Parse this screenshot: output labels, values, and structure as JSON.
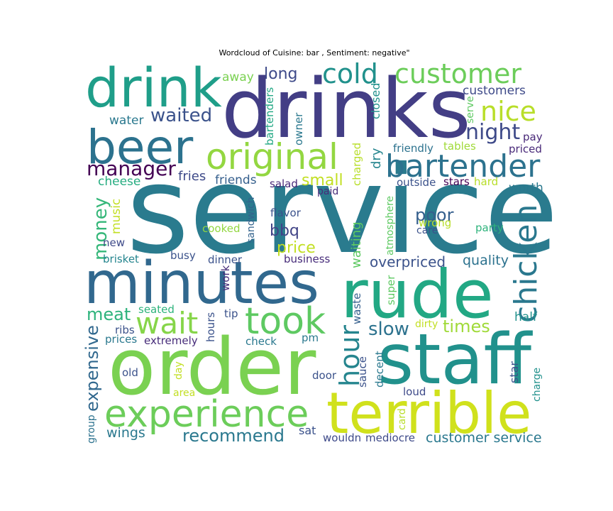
{
  "title": "Wordcloud of Cuisine: bar , Sentiment: negative\"",
  "chart_data": {
    "type": "wordcloud",
    "title": "Wordcloud of Cuisine: bar , Sentiment: negative\"",
    "colormap": "viridis",
    "words": [
      {
        "text": "service",
        "color": "#2a7b8e"
      },
      {
        "text": "drinks",
        "color": "#433e85"
      },
      {
        "text": "order",
        "color": "#7ad151"
      },
      {
        "text": "staff",
        "color": "#21918c"
      },
      {
        "text": "minutes",
        "color": "#31688e"
      },
      {
        "text": "rude",
        "color": "#22a884"
      },
      {
        "text": "drink",
        "color": "#1f9e89"
      },
      {
        "text": "terrible",
        "color": "#d0e11c"
      },
      {
        "text": "beer",
        "color": "#2c728e"
      },
      {
        "text": "experience",
        "color": "#6ccd5a"
      },
      {
        "text": "original",
        "color": "#93d741"
      },
      {
        "text": "took",
        "color": "#5ec962"
      },
      {
        "text": "customer",
        "color": "#6ccd5a"
      },
      {
        "text": "bartender",
        "color": "#2c728e"
      },
      {
        "text": "cold",
        "color": "#21918c"
      },
      {
        "text": "wait",
        "color": "#86d549"
      },
      {
        "text": "chicken",
        "color": "#2a788e"
      },
      {
        "text": "nice",
        "color": "#b8de29"
      },
      {
        "text": "hour",
        "color": "#25858e"
      },
      {
        "text": "manager",
        "color": "#440154"
      },
      {
        "text": "night",
        "color": "#3e4a89"
      },
      {
        "text": "waited",
        "color": "#3b528b"
      },
      {
        "text": "money",
        "color": "#35b779"
      },
      {
        "text": "expensive",
        "color": "#31688e"
      },
      {
        "text": "times",
        "color": "#a0da39"
      },
      {
        "text": "slow",
        "color": "#2c728e"
      },
      {
        "text": "meat",
        "color": "#2eb37c"
      },
      {
        "text": "poor",
        "color": "#355f8d"
      },
      {
        "text": "recommend",
        "color": "#2a788e"
      },
      {
        "text": "customer service",
        "color": "#2a788e"
      },
      {
        "text": "small",
        "color": "#c2df23"
      },
      {
        "text": "price",
        "color": "#c2df23"
      },
      {
        "text": "long",
        "color": "#3e4a89"
      },
      {
        "text": "bbq",
        "color": "#414487"
      },
      {
        "text": "overpriced",
        "color": "#3b528b"
      },
      {
        "text": "quality",
        "color": "#2c728e"
      },
      {
        "text": "customers",
        "color": "#3e4a89"
      },
      {
        "text": "waiting",
        "color": "#5ec962"
      },
      {
        "text": "wings",
        "color": "#2a788e"
      },
      {
        "text": "fries",
        "color": "#3e4a89"
      },
      {
        "text": "friends",
        "color": "#355f8d"
      },
      {
        "text": "cheese",
        "color": "#27ad81"
      },
      {
        "text": "water",
        "color": "#2a788e"
      },
      {
        "text": "worth",
        "color": "#2a788e"
      },
      {
        "text": "half",
        "color": "#21918c"
      },
      {
        "text": "music",
        "color": "#c2df23"
      },
      {
        "text": "away",
        "color": "#7ad151"
      },
      {
        "text": "closed",
        "color": "#21918c"
      },
      {
        "text": "bartenders",
        "color": "#22a884"
      },
      {
        "text": "owner",
        "color": "#2a788e"
      },
      {
        "text": "serve",
        "color": "#5ec962"
      },
      {
        "text": "friendly",
        "color": "#2c728e"
      },
      {
        "text": "pay",
        "color": "#482878"
      },
      {
        "text": "tables",
        "color": "#a0da39"
      },
      {
        "text": "priced",
        "color": "#482878"
      },
      {
        "text": "charged",
        "color": "#b8de29"
      },
      {
        "text": "dry",
        "color": "#25858e"
      },
      {
        "text": "outside",
        "color": "#3b528b"
      },
      {
        "text": "stars",
        "color": "#440154"
      },
      {
        "text": "hard",
        "color": "#b8de29"
      },
      {
        "text": "salad",
        "color": "#482878"
      },
      {
        "text": "paid",
        "color": "#472c7a"
      },
      {
        "text": "sandwich",
        "color": "#33638d"
      },
      {
        "text": "atmosphere",
        "color": "#5ec962"
      },
      {
        "text": "flavor",
        "color": "#3b528b"
      },
      {
        "text": "cooked",
        "color": "#93d741"
      },
      {
        "text": "wrong",
        "color": "#b8de29"
      },
      {
        "text": "care",
        "color": "#3b528b"
      },
      {
        "text": "party",
        "color": "#2eb37c"
      },
      {
        "text": "new",
        "color": "#3e4a89"
      },
      {
        "text": "brisket",
        "color": "#25858e"
      },
      {
        "text": "busy",
        "color": "#3b528b"
      },
      {
        "text": "dinner",
        "color": "#3b528b"
      },
      {
        "text": "business",
        "color": "#472c7a"
      },
      {
        "text": "super",
        "color": "#5ec962"
      },
      {
        "text": "work",
        "color": "#472c7a"
      },
      {
        "text": "waste",
        "color": "#355f8d"
      },
      {
        "text": "seated",
        "color": "#2eb37c"
      },
      {
        "text": "hours",
        "color": "#3b528b"
      },
      {
        "text": "tip",
        "color": "#3b528b"
      },
      {
        "text": "ribs",
        "color": "#3b528b"
      },
      {
        "text": "dirty",
        "color": "#c2df23"
      },
      {
        "text": "prices",
        "color": "#2a788e"
      },
      {
        "text": "extremely",
        "color": "#472c7a"
      },
      {
        "text": "check",
        "color": "#2a788e"
      },
      {
        "text": "pm",
        "color": "#2a788e"
      },
      {
        "text": "old",
        "color": "#3b528b"
      },
      {
        "text": "day",
        "color": "#c2df23"
      },
      {
        "text": "area",
        "color": "#c2df23"
      },
      {
        "text": "door",
        "color": "#3b528b"
      },
      {
        "text": "sauce",
        "color": "#3b528b"
      },
      {
        "text": "decent",
        "color": "#2a788e"
      },
      {
        "text": "card",
        "color": "#b8de29"
      },
      {
        "text": "star",
        "color": "#3b528b"
      },
      {
        "text": "charge",
        "color": "#21918c"
      },
      {
        "text": "loud",
        "color": "#3e4a89"
      },
      {
        "text": "group",
        "color": "#2c728e"
      },
      {
        "text": "sat",
        "color": "#3b528b"
      },
      {
        "text": "wouldn",
        "color": "#3e4a89"
      },
      {
        "text": "mediocre",
        "color": "#3e4a89"
      }
    ]
  }
}
